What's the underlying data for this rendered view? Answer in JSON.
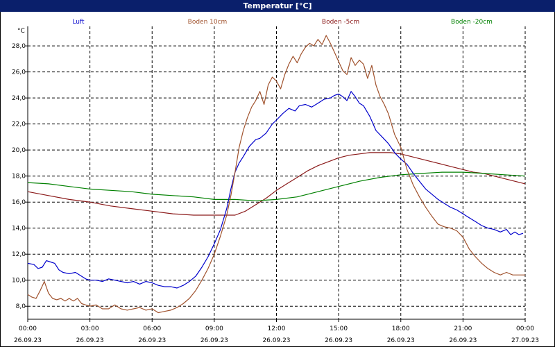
{
  "window": {
    "title": "Temperatur [°C]"
  },
  "colors": {
    "luft": "#0000cc",
    "boden10": "#a0522d",
    "boden5": "#8b1a1a",
    "boden20": "#008000",
    "grid": "#000000"
  },
  "chart_data": {
    "type": "line",
    "title": "Temperatur [°C]",
    "ylabel": "°C",
    "ylim": [
      7.0,
      29.5
    ],
    "yticks": [
      8.0,
      10.0,
      12.0,
      14.0,
      16.0,
      18.0,
      20.0,
      22.0,
      24.0,
      26.0,
      28.0
    ],
    "ytick_labels": [
      "8,0",
      "10,0",
      "12,0",
      "14,0",
      "16,0",
      "18,0",
      "20,0",
      "22,0",
      "24,0",
      "26,0",
      "28,0"
    ],
    "xlim": [
      0,
      24
    ],
    "xticks": [
      0,
      3,
      6,
      9,
      12,
      15,
      18,
      21,
      24
    ],
    "xtick_times": [
      "00:00",
      "03:00",
      "06:00",
      "09:00",
      "12:00",
      "15:00",
      "18:00",
      "21:00",
      "00:00"
    ],
    "xtick_dates": [
      "26.09.23",
      "26.09.23",
      "26.09.23",
      "26.09.23",
      "26.09.23",
      "26.09.23",
      "26.09.23",
      "26.09.23",
      "27.09.23"
    ],
    "grid": true,
    "legend_position": "top",
    "series": [
      {
        "name": "Luft",
        "color": "#0000cc",
        "x": [
          0,
          0.3,
          0.5,
          0.7,
          0.9,
          1.1,
          1.3,
          1.5,
          1.7,
          2,
          2.3,
          2.6,
          2.8,
          3,
          3.3,
          3.6,
          3.9,
          4.2,
          4.5,
          4.8,
          5.1,
          5.4,
          5.7,
          6,
          6.3,
          6.6,
          6.9,
          7.2,
          7.5,
          7.8,
          8.1,
          8.4,
          8.7,
          9,
          9.3,
          9.6,
          9.8,
          10,
          10.2,
          10.4,
          10.7,
          11,
          11.2,
          11.5,
          11.8,
          12,
          12.3,
          12.6,
          12.9,
          13.1,
          13.4,
          13.7,
          14,
          14.3,
          14.6,
          14.8,
          15,
          15.2,
          15.4,
          15.6,
          15.8,
          16,
          16.2,
          16.5,
          16.8,
          17.1,
          17.4,
          17.7,
          18,
          18.3,
          18.6,
          18.9,
          19.2,
          19.5,
          19.8,
          20.1,
          20.4,
          20.7,
          21,
          21.3,
          21.6,
          21.9,
          22.2,
          22.5,
          22.8,
          23.1,
          23.3,
          23.5,
          23.7,
          23.9
        ],
        "values": [
          11.3,
          11.2,
          10.9,
          11.0,
          11.5,
          11.4,
          11.3,
          10.8,
          10.6,
          10.5,
          10.6,
          10.3,
          10.1,
          10.0,
          10.0,
          9.9,
          10.1,
          10.0,
          9.9,
          9.8,
          9.9,
          9.7,
          9.9,
          9.8,
          9.6,
          9.5,
          9.5,
          9.4,
          9.6,
          9.9,
          10.3,
          11.0,
          11.8,
          12.8,
          13.9,
          15.5,
          17.0,
          18.3,
          19.0,
          19.5,
          20.3,
          20.8,
          20.9,
          21.3,
          22.0,
          22.3,
          22.8,
          23.2,
          23.0,
          23.4,
          23.5,
          23.3,
          23.6,
          23.9,
          24.0,
          24.2,
          24.3,
          24.1,
          23.8,
          24.5,
          24.1,
          23.6,
          23.4,
          22.6,
          21.5,
          21.0,
          20.5,
          19.8,
          19.3,
          18.9,
          18.2,
          17.6,
          17.0,
          16.6,
          16.2,
          15.9,
          15.6,
          15.4,
          15.1,
          14.8,
          14.5,
          14.2,
          14.0,
          13.9,
          13.7,
          13.9,
          13.5,
          13.7,
          13.5,
          13.6
        ]
      },
      {
        "name": "Boden 10cm",
        "color": "#a0522d",
        "x": [
          0,
          0.2,
          0.4,
          0.6,
          0.8,
          1,
          1.2,
          1.4,
          1.6,
          1.8,
          2,
          2.2,
          2.4,
          2.6,
          2.8,
          3,
          3.3,
          3.6,
          3.9,
          4.2,
          4.5,
          4.8,
          5.1,
          5.4,
          5.7,
          6,
          6.3,
          6.6,
          6.9,
          7.2,
          7.5,
          7.8,
          8.1,
          8.4,
          8.7,
          9,
          9.3,
          9.6,
          9.8,
          10,
          10.2,
          10.4,
          10.6,
          10.8,
          11,
          11.2,
          11.4,
          11.6,
          11.8,
          12,
          12.2,
          12.4,
          12.6,
          12.8,
          13,
          13.2,
          13.4,
          13.6,
          13.8,
          14,
          14.2,
          14.4,
          14.6,
          14.8,
          15,
          15.2,
          15.4,
          15.6,
          15.8,
          16,
          16.2,
          16.4,
          16.6,
          16.8,
          17,
          17.2,
          17.4,
          17.7,
          18,
          18.3,
          18.6,
          18.9,
          19.2,
          19.5,
          19.8,
          20.1,
          20.4,
          20.7,
          21,
          21.3,
          21.6,
          21.9,
          22.2,
          22.5,
          22.8,
          23.1,
          23.4,
          23.6,
          23.8,
          24
        ],
        "values": [
          8.9,
          8.7,
          8.6,
          9.2,
          9.9,
          9.0,
          8.6,
          8.5,
          8.6,
          8.4,
          8.6,
          8.4,
          8.6,
          8.2,
          8.1,
          8.0,
          8.1,
          7.8,
          7.8,
          8.1,
          7.8,
          7.7,
          7.8,
          7.9,
          7.7,
          7.8,
          7.5,
          7.6,
          7.7,
          7.9,
          8.2,
          8.6,
          9.2,
          10.0,
          10.9,
          12.0,
          13.4,
          15.0,
          16.5,
          18.3,
          20.2,
          21.5,
          22.5,
          23.3,
          23.8,
          24.5,
          23.5,
          25.0,
          25.6,
          25.3,
          24.7,
          25.8,
          26.6,
          27.2,
          26.7,
          27.4,
          27.9,
          28.2,
          28.0,
          28.5,
          28.1,
          28.8,
          28.2,
          27.5,
          26.8,
          26.1,
          25.8,
          27.1,
          26.5,
          26.9,
          26.6,
          25.5,
          26.5,
          25.0,
          24.1,
          23.5,
          22.8,
          21.2,
          20.2,
          18.5,
          17.3,
          16.4,
          15.6,
          14.9,
          14.3,
          14.1,
          14.0,
          13.8,
          13.3,
          12.4,
          11.8,
          11.3,
          10.9,
          10.6,
          10.4,
          10.6,
          10.4,
          10.4,
          10.4,
          10.4
        ]
      },
      {
        "name": "Boden -5cm",
        "color": "#8b1a1a",
        "x": [
          0,
          1,
          2,
          3,
          4,
          5,
          6,
          7,
          8,
          9,
          10,
          10.5,
          11,
          11.5,
          12,
          12.5,
          13,
          13.5,
          14,
          14.5,
          15,
          15.5,
          16,
          16.5,
          17,
          17.5,
          18,
          18.5,
          19,
          19.5,
          20,
          20.5,
          21,
          21.5,
          22,
          22.5,
          23,
          23.5,
          24
        ],
        "values": [
          16.8,
          16.5,
          16.2,
          16.0,
          15.7,
          15.5,
          15.3,
          15.1,
          15.0,
          15.0,
          15.0,
          15.3,
          15.8,
          16.3,
          16.9,
          17.4,
          17.9,
          18.4,
          18.8,
          19.1,
          19.4,
          19.6,
          19.7,
          19.8,
          19.8,
          19.8,
          19.7,
          19.5,
          19.3,
          19.1,
          18.9,
          18.7,
          18.5,
          18.3,
          18.2,
          18.0,
          17.8,
          17.6,
          17.4
        ]
      },
      {
        "name": "Boden -20cm",
        "color": "#008000",
        "x": [
          0,
          1,
          2,
          3,
          4,
          5,
          6,
          7,
          8,
          9,
          10,
          11,
          12,
          13,
          14,
          15,
          16,
          17,
          18,
          19,
          20,
          21,
          22,
          23,
          24
        ],
        "values": [
          17.5,
          17.4,
          17.2,
          17.0,
          16.9,
          16.8,
          16.6,
          16.5,
          16.4,
          16.2,
          16.2,
          16.1,
          16.2,
          16.4,
          16.8,
          17.2,
          17.6,
          17.9,
          18.1,
          18.2,
          18.3,
          18.3,
          18.2,
          18.1,
          18.0
        ]
      }
    ]
  }
}
